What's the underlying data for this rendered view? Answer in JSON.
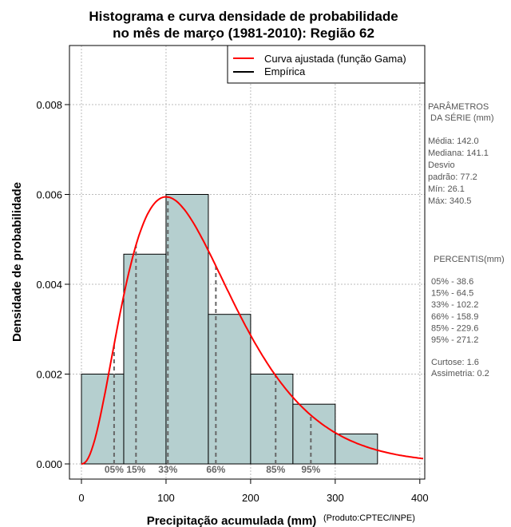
{
  "chart_data": {
    "type": "bar",
    "title": [
      "Histograma e curva densidade de probabilidade",
      "no mês de março (1981-2010): Região 62"
    ],
    "xlabel": "Precipitação acumulada (mm)",
    "ylabel": "Densidade de probabilidade",
    "credit": "(Produto:CPTEC/INPE)",
    "xlim": [
      -15,
      405
    ],
    "ylim": [
      -0.00035,
      0.0093
    ],
    "xticks": [
      0,
      100,
      200,
      300,
      400
    ],
    "yticks": [
      "0.000",
      "0.002",
      "0.004",
      "0.006",
      "0.008"
    ],
    "ytick_values": [
      0,
      0.002,
      0.004,
      0.006,
      0.008
    ],
    "bins": [
      [
        0,
        50
      ],
      [
        50,
        100
      ],
      [
        100,
        150
      ],
      [
        150,
        200
      ],
      [
        200,
        250
      ],
      [
        250,
        300
      ],
      [
        300,
        350
      ]
    ],
    "values": [
      0.002,
      0.00467,
      0.006,
      0.00333,
      0.002,
      0.00133,
      0.000667
    ],
    "gamma": {
      "mean": 142.0,
      "sd": 77.2
    },
    "legend": [
      "Curva ajustada (função Gama)",
      "Empírica"
    ],
    "legend_position": "top-right",
    "percentiles": [
      {
        "label": "05%",
        "value": 38.6
      },
      {
        "label": "15%",
        "value": 64.5
      },
      {
        "label": "33%",
        "value": 102.2
      },
      {
        "label": "66%",
        "value": 158.9
      },
      {
        "label": "85%",
        "value": 229.6
      },
      {
        "label": "95%",
        "value": 271.2
      }
    ],
    "colors": {
      "bar": "#b5cfcf",
      "curve": "#ff0000",
      "pct": "#666666"
    }
  },
  "side": {
    "params_title1": "PARÂMETROS",
    "params_title2": " DA SÉRIE (mm)",
    "params": [
      "Média:  142.0",
      "Mediana:  141.1",
      "Desvio",
      "padrão:  77.2",
      "Mín:  26.1",
      "Máx:  340.5"
    ],
    "pct_title": "PERCENTIS(mm)",
    "pct": [
      "05% -   38.6",
      "15% -   64.5",
      "33% -   102.2",
      "66% -   158.9",
      "85% -   229.6",
      "95% -   271.2"
    ],
    "extra": [
      "Curtose:  1.6",
      "Assimetria:  0.2"
    ]
  }
}
